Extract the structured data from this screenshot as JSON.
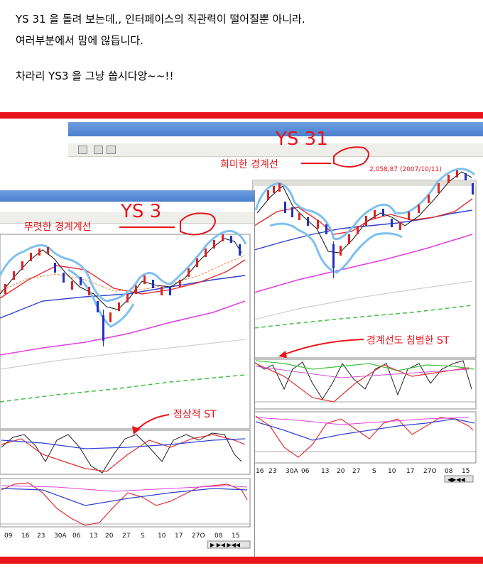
{
  "post": {
    "line1": "YS 31 을 돌려 보는데,, 인터페이스의 직관력이 떨어질뿐 아니라.",
    "line2": "여러부분에서 맘에 않듭니다.",
    "line3": "차라리 YS3 을 그냥 씁시다앙~~!!"
  },
  "right_chart": {
    "title": "YS 31",
    "annotation_top": "희미한 경계선",
    "annotation_st": "경계선도 침범한 ST",
    "price_label": "2,058,87 (2007/10/11)",
    "x_ticks": [
      "16",
      "23",
      "30A",
      "06",
      "13",
      "20",
      "27",
      "S",
      "10",
      "17",
      "27O",
      "08",
      "15"
    ]
  },
  "left_chart": {
    "title": "YS 3",
    "annotation_top": "뚜렷한 경계계선",
    "annotation_st": "정상적 ST",
    "x_ticks": [
      "09",
      "16",
      "23",
      "30A",
      "06",
      "13",
      "20",
      "27",
      "S",
      "10",
      "17",
      "27O",
      "08",
      "15"
    ]
  },
  "colors": {
    "banner_red": "#e8141a",
    "title_bar_blue": "#5a8ad8",
    "envelope": "#7ec0ee",
    "ma_red": "#e03030",
    "ma_blue": "#3040d0",
    "ma_magenta": "#e040e0",
    "ma_green": "#30c030"
  }
}
